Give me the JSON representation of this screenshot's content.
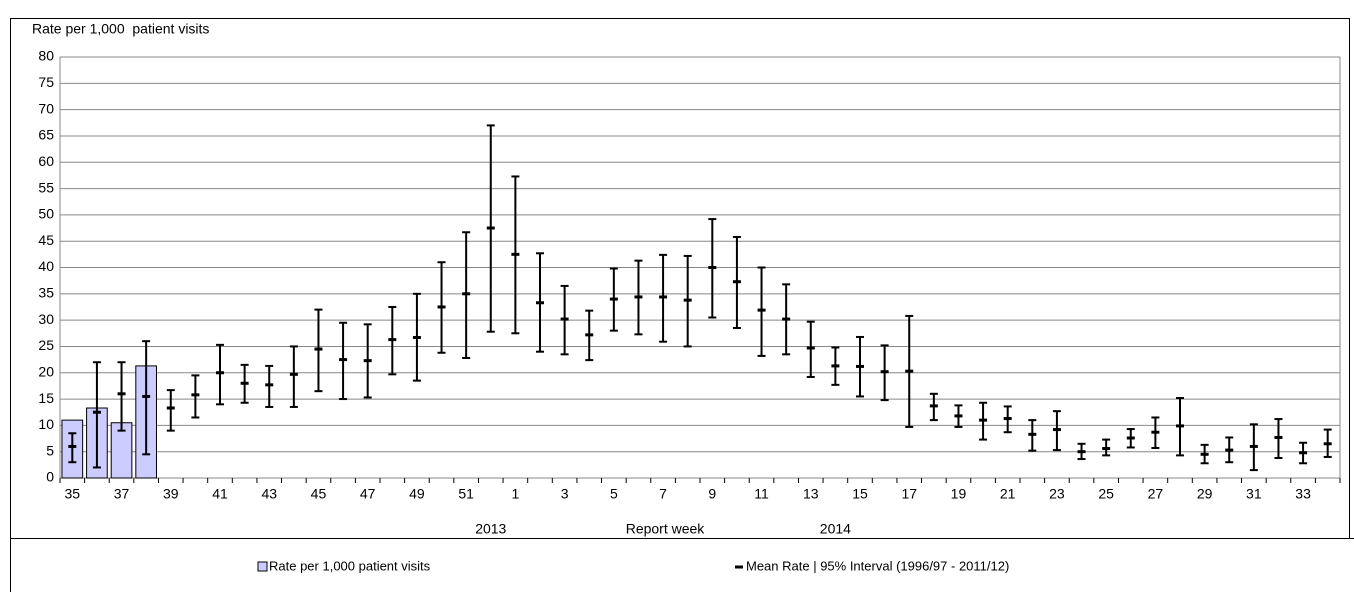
{
  "chart_data": {
    "type": "bar_errorbar",
    "y_axis_label": "Rate per 1,000  patient visits",
    "x_axis_label": "Report week",
    "year_labels": [
      {
        "label": "2013",
        "category": 17
      },
      {
        "label": "2014",
        "category": 31
      }
    ],
    "categories": [
      "35",
      null,
      "37",
      null,
      "39",
      null,
      "41",
      null,
      "43",
      null,
      "45",
      null,
      "47",
      null,
      "49",
      null,
      "51",
      null,
      "1",
      null,
      "3",
      null,
      "5",
      null,
      "7",
      null,
      "9",
      null,
      "11",
      null,
      "13",
      null,
      "15",
      null,
      "17",
      null,
      "19",
      null,
      "21",
      null,
      "23",
      null,
      "25",
      null,
      "27",
      null,
      "29",
      null,
      "31",
      null,
      "33",
      null
    ],
    "series": [
      {
        "name": "Rate per 1,000 patient visits",
        "type": "bar",
        "color": "#ccccff",
        "values": [
          11,
          13.3,
          10.5,
          21.3,
          null,
          null,
          null,
          null,
          null,
          null,
          null,
          null,
          null,
          null,
          null,
          null,
          null,
          null,
          null,
          null,
          null,
          null,
          null,
          null,
          null,
          null,
          null,
          null,
          null,
          null,
          null,
          null,
          null,
          null,
          null,
          null,
          null,
          null,
          null,
          null,
          null,
          null,
          null,
          null,
          null,
          null,
          null,
          null,
          null,
          null,
          null,
          null
        ]
      },
      {
        "name": "Mean Rate | 95% Interval (1996/97 - 2011/12)",
        "type": "errorbar",
        "color": "#000000",
        "values": [
          6,
          12.5,
          16,
          15.5,
          13.3,
          15.8,
          20,
          18,
          17.7,
          19.7,
          24.5,
          22.5,
          22.3,
          26.3,
          26.7,
          32.5,
          35,
          47.5,
          42.5,
          33.3,
          30.2,
          27.2,
          34,
          34.4,
          34.4,
          33.8,
          40,
          37.3,
          31.9,
          30.2,
          24.7,
          21.3,
          21.2,
          20.2,
          20.3,
          13.7,
          11.8,
          11,
          11.3,
          8.3,
          9.2,
          5,
          5.6,
          7.6,
          8.7,
          9.9,
          4.5,
          5.3,
          6,
          7.7,
          4.8,
          6.5
        ],
        "lower": [
          3,
          2,
          9,
          4.5,
          9,
          11.5,
          14,
          14.3,
          13.5,
          13.5,
          16.5,
          15,
          15.3,
          19.7,
          18.5,
          23.8,
          22.8,
          27.8,
          27.5,
          24,
          23.5,
          22.4,
          28,
          27.3,
          25.9,
          25,
          30.5,
          28.5,
          23.2,
          23.5,
          19.2,
          17.7,
          15.5,
          14.8,
          9.7,
          11,
          9.7,
          7.3,
          8.7,
          5.2,
          5.3,
          3.6,
          4.3,
          5.8,
          5.7,
          4.3,
          2.8,
          3,
          1.5,
          3.8,
          2.8,
          4
        ],
        "upper": [
          8.5,
          22,
          22,
          26,
          16.7,
          19.5,
          25.3,
          21.5,
          21.3,
          25,
          32,
          29.5,
          29.2,
          32.5,
          35,
          41,
          46.7,
          67,
          57.3,
          42.7,
          36.5,
          31.8,
          39.8,
          41.3,
          42.4,
          42.2,
          49.2,
          45.8,
          40,
          36.8,
          29.7,
          24.8,
          26.8,
          25.2,
          30.8,
          16,
          13.8,
          14.3,
          13.6,
          11,
          12.7,
          6.5,
          7.3,
          9.3,
          11.5,
          15.2,
          6.3,
          7.7,
          10.2,
          11.2,
          6.7,
          9.2
        ]
      }
    ],
    "ylim": [
      0,
      80
    ],
    "yticks": [
      0,
      5,
      10,
      15,
      20,
      25,
      30,
      35,
      40,
      45,
      50,
      55,
      60,
      65,
      70,
      75,
      80
    ],
    "grid": true,
    "legend": "bottom"
  }
}
